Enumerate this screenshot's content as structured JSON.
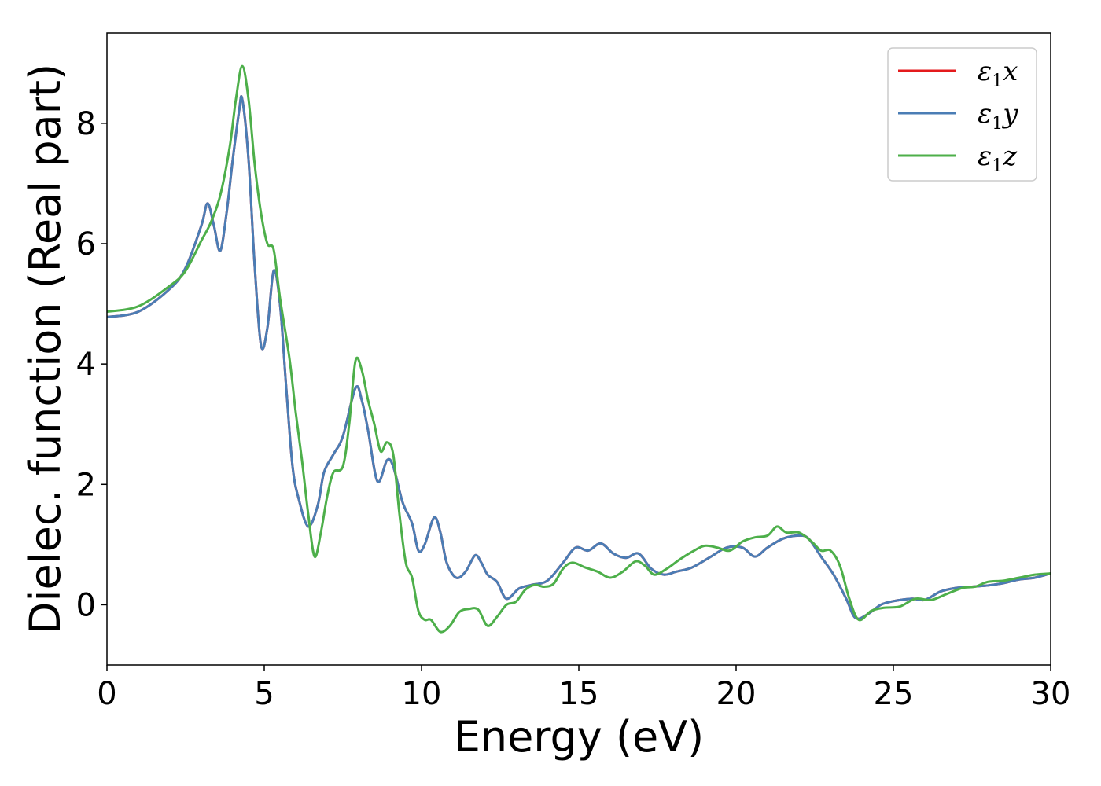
{
  "chart_data": {
    "type": "line",
    "xlabel": "Energy (eV)",
    "ylabel": "Dielec. function (Real part)",
    "xlim": [
      0,
      30
    ],
    "ylim": [
      -1,
      9.5
    ],
    "xticks": [
      0,
      5,
      10,
      15,
      20,
      25,
      30
    ],
    "yticks": [
      0,
      2,
      4,
      6,
      8
    ],
    "grid": false,
    "legend_position": "top-right",
    "series": [
      {
        "name": "ε1x",
        "legend": {
          "base": "ε",
          "sub": "1",
          "suffix": "x"
        },
        "color": "#e41a1c",
        "points": [
          [
            0,
            4.78
          ],
          [
            1,
            4.87
          ],
          [
            2,
            5.25
          ],
          [
            2.5,
            5.6
          ],
          [
            3,
            6.3
          ],
          [
            3.2,
            6.67
          ],
          [
            3.4,
            6.3
          ],
          [
            3.6,
            5.88
          ],
          [
            3.8,
            6.5
          ],
          [
            4,
            7.4
          ],
          [
            4.2,
            8.2
          ],
          [
            4.3,
            8.4
          ],
          [
            4.5,
            7.4
          ],
          [
            4.7,
            5.6
          ],
          [
            4.9,
            4.3
          ],
          [
            5.1,
            4.6
          ],
          [
            5.3,
            5.55
          ],
          [
            5.5,
            5.0
          ],
          [
            5.7,
            3.6
          ],
          [
            5.9,
            2.3
          ],
          [
            6.1,
            1.75
          ],
          [
            6.4,
            1.3
          ],
          [
            6.7,
            1.65
          ],
          [
            6.9,
            2.2
          ],
          [
            7.2,
            2.5
          ],
          [
            7.5,
            2.8
          ],
          [
            7.9,
            3.6
          ],
          [
            8.1,
            3.4
          ],
          [
            8.3,
            2.9
          ],
          [
            8.6,
            2.05
          ],
          [
            8.9,
            2.4
          ],
          [
            9.1,
            2.3
          ],
          [
            9.4,
            1.7
          ],
          [
            9.7,
            1.35
          ],
          [
            9.9,
            0.9
          ],
          [
            10.1,
            1.0
          ],
          [
            10.4,
            1.45
          ],
          [
            10.6,
            1.2
          ],
          [
            10.8,
            0.7
          ],
          [
            11.1,
            0.45
          ],
          [
            11.4,
            0.55
          ],
          [
            11.7,
            0.82
          ],
          [
            11.9,
            0.7
          ],
          [
            12.1,
            0.5
          ],
          [
            12.4,
            0.38
          ],
          [
            12.7,
            0.1
          ],
          [
            13.1,
            0.27
          ],
          [
            13.5,
            0.33
          ],
          [
            14,
            0.4
          ],
          [
            14.5,
            0.7
          ],
          [
            14.9,
            0.95
          ],
          [
            15.3,
            0.9
          ],
          [
            15.7,
            1.02
          ],
          [
            16.1,
            0.85
          ],
          [
            16.5,
            0.78
          ],
          [
            16.9,
            0.85
          ],
          [
            17.3,
            0.6
          ],
          [
            17.7,
            0.5
          ],
          [
            18.1,
            0.55
          ],
          [
            18.6,
            0.62
          ],
          [
            19.2,
            0.8
          ],
          [
            19.7,
            0.95
          ],
          [
            20.2,
            0.95
          ],
          [
            20.6,
            0.8
          ],
          [
            21,
            0.95
          ],
          [
            21.5,
            1.1
          ],
          [
            22,
            1.15
          ],
          [
            22.3,
            1.1
          ],
          [
            22.7,
            0.8
          ],
          [
            23.1,
            0.5
          ],
          [
            23.5,
            0.1
          ],
          [
            23.8,
            -0.22
          ],
          [
            24.2,
            -0.15
          ],
          [
            24.6,
            0.0
          ],
          [
            25,
            0.06
          ],
          [
            25.6,
            0.1
          ],
          [
            26,
            0.08
          ],
          [
            26.5,
            0.22
          ],
          [
            27,
            0.28
          ],
          [
            27.5,
            0.3
          ],
          [
            28,
            0.32
          ],
          [
            28.5,
            0.36
          ],
          [
            29,
            0.42
          ],
          [
            29.5,
            0.45
          ],
          [
            30,
            0.52
          ]
        ]
      },
      {
        "name": "ε1y",
        "legend": {
          "base": "ε",
          "sub": "1",
          "suffix": "y"
        },
        "color": "#4a7db5",
        "points": [
          [
            0,
            4.78
          ],
          [
            1,
            4.87
          ],
          [
            2,
            5.25
          ],
          [
            2.5,
            5.6
          ],
          [
            3,
            6.3
          ],
          [
            3.2,
            6.67
          ],
          [
            3.4,
            6.3
          ],
          [
            3.6,
            5.88
          ],
          [
            3.8,
            6.5
          ],
          [
            4,
            7.4
          ],
          [
            4.2,
            8.2
          ],
          [
            4.3,
            8.4
          ],
          [
            4.5,
            7.4
          ],
          [
            4.7,
            5.6
          ],
          [
            4.9,
            4.3
          ],
          [
            5.1,
            4.6
          ],
          [
            5.3,
            5.55
          ],
          [
            5.5,
            5.0
          ],
          [
            5.7,
            3.6
          ],
          [
            5.9,
            2.3
          ],
          [
            6.1,
            1.75
          ],
          [
            6.4,
            1.3
          ],
          [
            6.7,
            1.65
          ],
          [
            6.9,
            2.2
          ],
          [
            7.2,
            2.5
          ],
          [
            7.5,
            2.8
          ],
          [
            7.9,
            3.6
          ],
          [
            8.1,
            3.4
          ],
          [
            8.3,
            2.9
          ],
          [
            8.6,
            2.05
          ],
          [
            8.9,
            2.4
          ],
          [
            9.1,
            2.3
          ],
          [
            9.4,
            1.7
          ],
          [
            9.7,
            1.35
          ],
          [
            9.9,
            0.9
          ],
          [
            10.1,
            1.0
          ],
          [
            10.4,
            1.45
          ],
          [
            10.6,
            1.2
          ],
          [
            10.8,
            0.7
          ],
          [
            11.1,
            0.45
          ],
          [
            11.4,
            0.55
          ],
          [
            11.7,
            0.82
          ],
          [
            11.9,
            0.7
          ],
          [
            12.1,
            0.5
          ],
          [
            12.4,
            0.38
          ],
          [
            12.7,
            0.1
          ],
          [
            13.1,
            0.27
          ],
          [
            13.5,
            0.33
          ],
          [
            14,
            0.4
          ],
          [
            14.5,
            0.7
          ],
          [
            14.9,
            0.95
          ],
          [
            15.3,
            0.9
          ],
          [
            15.7,
            1.02
          ],
          [
            16.1,
            0.85
          ],
          [
            16.5,
            0.78
          ],
          [
            16.9,
            0.85
          ],
          [
            17.3,
            0.6
          ],
          [
            17.7,
            0.5
          ],
          [
            18.1,
            0.55
          ],
          [
            18.6,
            0.62
          ],
          [
            19.2,
            0.8
          ],
          [
            19.7,
            0.95
          ],
          [
            20.2,
            0.95
          ],
          [
            20.6,
            0.8
          ],
          [
            21,
            0.95
          ],
          [
            21.5,
            1.1
          ],
          [
            22,
            1.15
          ],
          [
            22.3,
            1.1
          ],
          [
            22.7,
            0.8
          ],
          [
            23.1,
            0.5
          ],
          [
            23.5,
            0.1
          ],
          [
            23.8,
            -0.22
          ],
          [
            24.2,
            -0.15
          ],
          [
            24.6,
            0.0
          ],
          [
            25,
            0.06
          ],
          [
            25.6,
            0.1
          ],
          [
            26,
            0.08
          ],
          [
            26.5,
            0.22
          ],
          [
            27,
            0.28
          ],
          [
            27.5,
            0.3
          ],
          [
            28,
            0.32
          ],
          [
            28.5,
            0.36
          ],
          [
            29,
            0.42
          ],
          [
            29.5,
            0.45
          ],
          [
            30,
            0.52
          ]
        ]
      },
      {
        "name": "ε1z",
        "legend": {
          "base": "ε",
          "sub": "1",
          "suffix": "z"
        },
        "color": "#4daf4a",
        "points": [
          [
            0,
            4.87
          ],
          [
            1,
            4.96
          ],
          [
            2,
            5.3
          ],
          [
            2.5,
            5.55
          ],
          [
            3,
            6.05
          ],
          [
            3.3,
            6.35
          ],
          [
            3.6,
            6.8
          ],
          [
            3.9,
            7.6
          ],
          [
            4.1,
            8.4
          ],
          [
            4.3,
            8.95
          ],
          [
            4.5,
            8.4
          ],
          [
            4.7,
            7.3
          ],
          [
            4.9,
            6.5
          ],
          [
            5.1,
            6.0
          ],
          [
            5.3,
            5.9
          ],
          [
            5.5,
            5.1
          ],
          [
            5.8,
            4.1
          ],
          [
            6.0,
            3.2
          ],
          [
            6.2,
            2.4
          ],
          [
            6.4,
            1.5
          ],
          [
            6.6,
            0.8
          ],
          [
            6.8,
            1.2
          ],
          [
            7.0,
            1.8
          ],
          [
            7.2,
            2.2
          ],
          [
            7.5,
            2.3
          ],
          [
            7.7,
            3.0
          ],
          [
            7.9,
            4.05
          ],
          [
            8.1,
            3.9
          ],
          [
            8.3,
            3.4
          ],
          [
            8.5,
            3.0
          ],
          [
            8.7,
            2.55
          ],
          [
            8.9,
            2.7
          ],
          [
            9.1,
            2.5
          ],
          [
            9.3,
            1.5
          ],
          [
            9.5,
            0.7
          ],
          [
            9.7,
            0.45
          ],
          [
            9.9,
            -0.1
          ],
          [
            10.1,
            -0.25
          ],
          [
            10.3,
            -0.25
          ],
          [
            10.6,
            -0.45
          ],
          [
            10.9,
            -0.35
          ],
          [
            11.2,
            -0.12
          ],
          [
            11.5,
            -0.07
          ],
          [
            11.8,
            -0.08
          ],
          [
            12.1,
            -0.35
          ],
          [
            12.4,
            -0.2
          ],
          [
            12.7,
            0.0
          ],
          [
            13.0,
            0.05
          ],
          [
            13.3,
            0.25
          ],
          [
            13.6,
            0.33
          ],
          [
            13.9,
            0.3
          ],
          [
            14.2,
            0.35
          ],
          [
            14.5,
            0.6
          ],
          [
            14.8,
            0.7
          ],
          [
            15.2,
            0.62
          ],
          [
            15.6,
            0.55
          ],
          [
            16.0,
            0.45
          ],
          [
            16.4,
            0.55
          ],
          [
            16.8,
            0.72
          ],
          [
            17.1,
            0.65
          ],
          [
            17.4,
            0.5
          ],
          [
            17.8,
            0.6
          ],
          [
            18.2,
            0.75
          ],
          [
            18.6,
            0.88
          ],
          [
            19.0,
            0.98
          ],
          [
            19.4,
            0.95
          ],
          [
            19.8,
            0.9
          ],
          [
            20.2,
            1.05
          ],
          [
            20.6,
            1.12
          ],
          [
            21.0,
            1.15
          ],
          [
            21.3,
            1.3
          ],
          [
            21.6,
            1.2
          ],
          [
            22.0,
            1.2
          ],
          [
            22.4,
            1.05
          ],
          [
            22.7,
            0.9
          ],
          [
            23.0,
            0.9
          ],
          [
            23.3,
            0.65
          ],
          [
            23.6,
            0.1
          ],
          [
            23.9,
            -0.25
          ],
          [
            24.3,
            -0.1
          ],
          [
            24.7,
            -0.05
          ],
          [
            25.2,
            -0.03
          ],
          [
            25.7,
            0.1
          ],
          [
            26.2,
            0.08
          ],
          [
            26.7,
            0.18
          ],
          [
            27.2,
            0.28
          ],
          [
            27.6,
            0.3
          ],
          [
            28.0,
            0.38
          ],
          [
            28.5,
            0.4
          ],
          [
            29.0,
            0.45
          ],
          [
            29.5,
            0.5
          ],
          [
            30,
            0.52
          ]
        ]
      }
    ]
  }
}
